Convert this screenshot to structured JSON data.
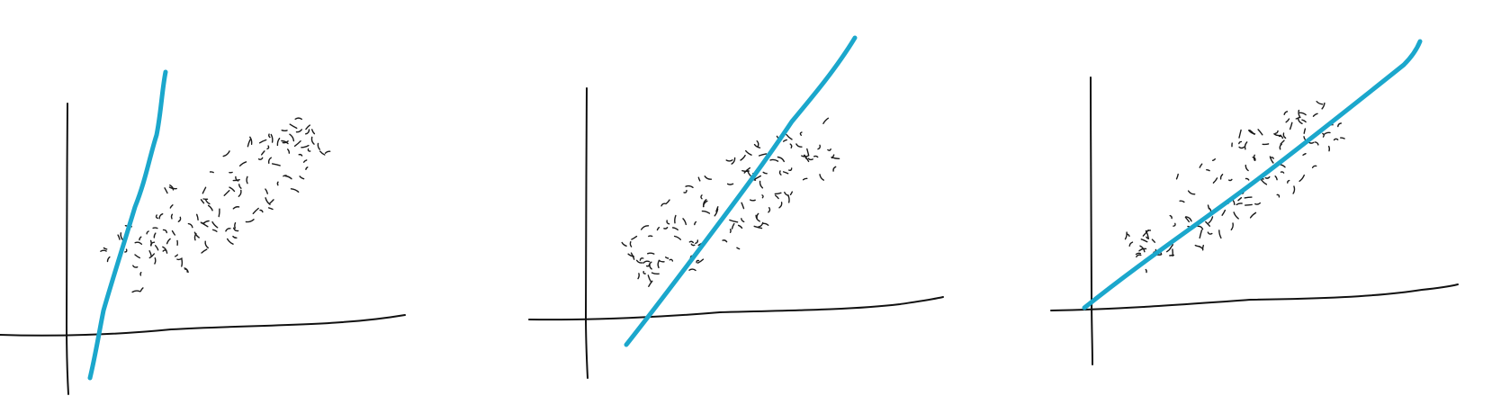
{
  "colors": {
    "background": "#ffffff",
    "axis": "#111111",
    "points": "#1a1a1a",
    "fit_line": "#1ba7cc"
  },
  "panels": [
    {
      "name": "panel-1-steep-fit",
      "fit": "too-steep"
    },
    {
      "name": "panel-2-offset-fit",
      "fit": "offset"
    },
    {
      "name": "panel-3-best-fit",
      "fit": "good"
    }
  ]
}
